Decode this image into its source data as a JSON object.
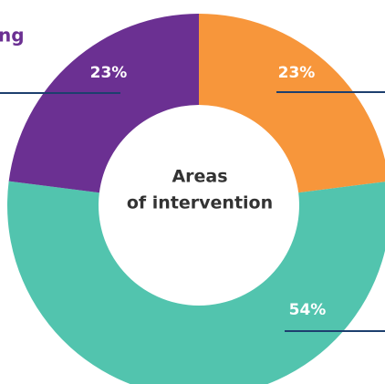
{
  "chart_data": {
    "type": "donut",
    "title": "ng",
    "center_label": [
      "Areas",
      "of intervention"
    ],
    "categories": [
      null,
      null,
      null
    ],
    "values": [
      23,
      54,
      23
    ],
    "value_labels": [
      "23%",
      "54%",
      "23%"
    ],
    "colors": [
      "#f7963b",
      "#52c4ae",
      "#6b3092"
    ]
  }
}
